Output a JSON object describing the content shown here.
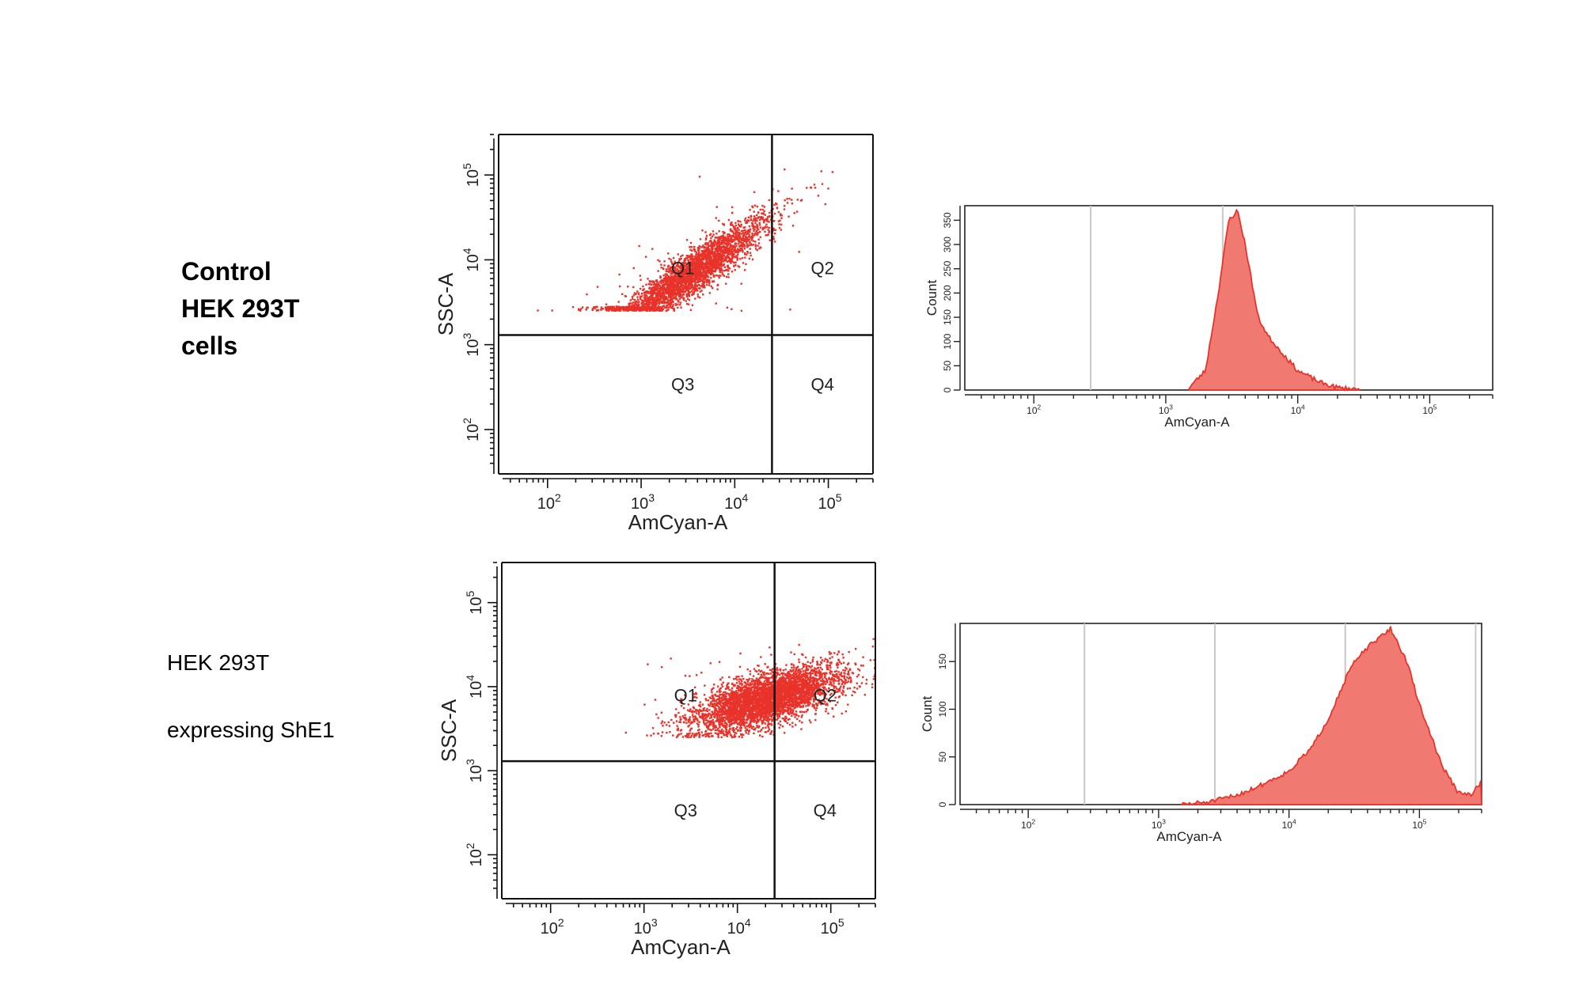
{
  "rows": [
    {
      "label_lines": [
        "Control",
        "HEK 293T",
        "cells"
      ]
    },
    {
      "label_line1": "HEK 293T",
      "label_line2": "expressing ShE1"
    }
  ],
  "chart_data": [
    {
      "type": "scatter",
      "title": "",
      "xlabel": "AmCyan-A",
      "ylabel": "SSC-A",
      "x_scale": "log",
      "y_scale": "log",
      "xlim": [
        30,
        300000
      ],
      "ylim": [
        30,
        300000
      ],
      "x_tick_labels": [
        "10^2",
        "10^3",
        "10^4",
        "10^5"
      ],
      "y_tick_labels": [
        "10^2",
        "10^3",
        "10^4",
        "10^5"
      ],
      "gate": {
        "x": 25000,
        "y": 1300
      },
      "quadrants": [
        "Q1",
        "Q2",
        "Q3",
        "Q4"
      ],
      "population": {
        "x_range": [
          700,
          60000
        ],
        "y_range": [
          2500,
          60000
        ],
        "trend": "SSC increases with AmCyan"
      },
      "color": "#e8332a"
    },
    {
      "type": "area",
      "title": "",
      "xlabel": "AmCyan-A",
      "ylabel": "Count",
      "x_scale": "log",
      "xlim": [
        30,
        300000
      ],
      "ylim": [
        0,
        380
      ],
      "x_tick_labels": [
        "10^2",
        "10^3",
        "10^4",
        "10^5"
      ],
      "y_ticks": [
        0,
        50,
        100,
        150,
        200,
        250,
        300,
        350
      ],
      "gate_lines": [
        270,
        2700,
        27000
      ],
      "x": [
        1500,
        2000,
        2500,
        3000,
        3500,
        4000,
        5000,
        6000,
        8000,
        10000,
        15000,
        20000,
        30000
      ],
      "y": [
        5,
        40,
        200,
        350,
        370,
        300,
        150,
        110,
        70,
        40,
        15,
        5,
        1
      ],
      "color": "#e8332a"
    },
    {
      "type": "scatter",
      "title": "",
      "xlabel": "AmCyan-A",
      "ylabel": "SSC-A",
      "x_scale": "log",
      "y_scale": "log",
      "xlim": [
        30,
        300000
      ],
      "ylim": [
        30,
        300000
      ],
      "x_tick_labels": [
        "10^2",
        "10^3",
        "10^4",
        "10^5"
      ],
      "y_tick_labels": [
        "10^2",
        "10^3",
        "10^4",
        "10^5"
      ],
      "gate": {
        "x": 25000,
        "y": 1300
      },
      "quadrants": [
        "Q1",
        "Q2",
        "Q3",
        "Q4"
      ],
      "population": {
        "x_range": [
          1000,
          300000
        ],
        "y_range": [
          2500,
          60000
        ],
        "trend": "shifted to high AmCyan"
      },
      "color": "#e8332a"
    },
    {
      "type": "area",
      "title": "",
      "xlabel": "AmCyan-A",
      "ylabel": "Count",
      "x_scale": "log",
      "xlim": [
        30,
        300000
      ],
      "ylim": [
        0,
        190
      ],
      "x_tick_labels": [
        "10^2",
        "10^3",
        "10^4",
        "10^5"
      ],
      "y_ticks": [
        0,
        50,
        100,
        150
      ],
      "gate_lines": [
        270,
        2700,
        27000,
        270000
      ],
      "x": [
        1500,
        2500,
        4000,
        6000,
        10000,
        15000,
        20000,
        30000,
        40000,
        50000,
        60000,
        80000,
        100000,
        150000,
        200000,
        250000,
        300000
      ],
      "y": [
        0,
        3,
        10,
        20,
        35,
        60,
        90,
        145,
        165,
        175,
        185,
        150,
        105,
        40,
        12,
        10,
        25
      ],
      "color": "#e8332a"
    }
  ],
  "colors": {
    "data": "#e8332a",
    "fill": "#f07a72",
    "axis": "#222222",
    "gate_line": "#c8c8c8"
  }
}
